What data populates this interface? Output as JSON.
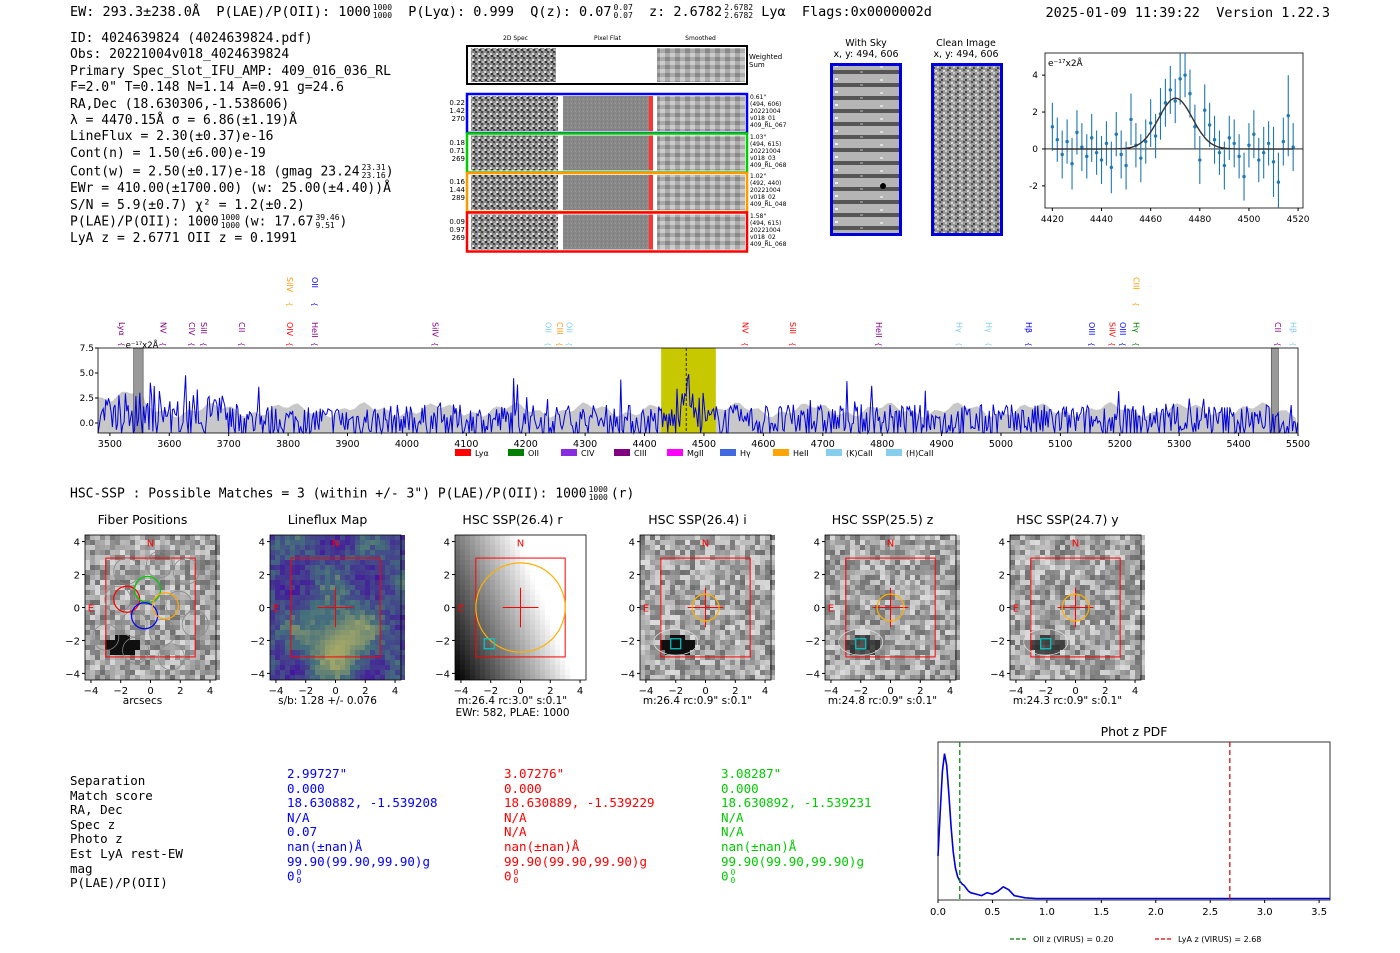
{
  "header": {
    "ew": "EW: 293.3±238.0Å",
    "plae": "P(LAE)/P(OII): 1000",
    "plae_hi": "1000",
    "plae_lo": "1000",
    "plya": "P(Lyα): 0.999",
    "qz": "Q(z): 0.07",
    "qz_hi": "0.07",
    "qz_lo": "0.07",
    "z": "z: 2.6782",
    "z_hi": "2.6782",
    "z_lo": "2.6782",
    "z_line": "Lyα",
    "flags": "Flags:0x0000002d",
    "timestamp": "2025-01-09 11:39:22",
    "version": "Version 1.22.3"
  },
  "info": {
    "lines": [
      "ID: 4024639824 (4024639824.pdf)",
      "Obs: 20221004v018_4024639824",
      "Primary Spec_Slot_IFU_AMP: 409_016_036_RL",
      "F=2.0\"  T=0.148  N=1.14  A=0.91  g=24.6",
      "RA,Dec (18.630306,-1.538606)",
      "λ = 4470.15Å  σ = 6.86(±1.19)Å",
      "LineFlux = 2.30(±0.37)e-16",
      "Cont(n) = 1.50(±6.00)e-19"
    ],
    "cont_w": "Cont(w) = 2.50(±0.17)e-18 (gmag 23.24",
    "cont_w_hi": "23.31",
    "cont_w_lo": "23.16",
    "ewr": "EWr = 410.00(±1700.00) (w: 25.00(±4.40))Å",
    "sn": "S/N = 5.9(±0.7)  χ² = 1.2(±0.2)",
    "plae": "P(LAE)/P(OII): 1000",
    "plae_hi": "1000",
    "plae_lo": "1000",
    "plae_w": "(w: 17.67",
    "plae_w_hi": "39.46",
    "plae_w_lo": "9.51",
    "z": "LyA z = 2.6771  OII z = 0.1991"
  },
  "cutouts": {
    "col_titles": [
      "2D Spec",
      "Pixel Flat",
      "Smoothed"
    ],
    "weighted_sum": "Weighted Sum",
    "rows": [
      {
        "left": [
          "0.22",
          "1.42",
          "270"
        ],
        "right": [
          "0.61\"",
          "(494, 606)",
          "20221004",
          "v018_01",
          "409_RL_067"
        ],
        "color": "#0000ff"
      },
      {
        "left": [
          "0.18",
          "0.71",
          "269"
        ],
        "right": [
          "1.03\"",
          "(494, 615)",
          "20221004",
          "v018_03",
          "409_RL_068"
        ],
        "color": "#00cc00"
      },
      {
        "left": [
          "0.16",
          "1.44",
          "289"
        ],
        "right": [
          "1.02\"",
          "(492, 440)",
          "20221004",
          "v018_02",
          "409_RL_048"
        ],
        "color": "#ff9900"
      },
      {
        "left": [
          "0.09",
          "0.97",
          "269"
        ],
        "right": [
          "1.58\"",
          "(494, 615)",
          "20221004",
          "v018_02",
          "409_RL_068"
        ],
        "color": "#ff0000"
      }
    ],
    "with_sky": "With Sky",
    "with_sky_xy": "x, y: 494, 606",
    "clean": "Clean Image",
    "clean_xy": "x, y: 494, 606"
  },
  "chart_data": [
    {
      "type": "line",
      "name": "emission-line-fit",
      "title": "",
      "ylabel": "e⁻¹⁷x2Å",
      "xlim": [
        4417,
        4522
      ],
      "ylim": [
        -3.2,
        5.2
      ],
      "xticks": [
        4420,
        4440,
        4460,
        4480,
        4500,
        4520
      ],
      "yticks": [
        -2,
        0,
        2,
        4
      ],
      "x": [
        4420,
        4422,
        4424,
        4426,
        4428,
        4430,
        4432,
        4434,
        4436,
        4438,
        4440,
        4442,
        4444,
        4446,
        4448,
        4450,
        4452,
        4454,
        4456,
        4458,
        4460,
        4462,
        4464,
        4466,
        4468,
        4470,
        4472,
        4474,
        4476,
        4478,
        4480,
        4482,
        4484,
        4486,
        4488,
        4490,
        4492,
        4494,
        4496,
        4498,
        4500,
        4502,
        4504,
        4506,
        4508,
        4510,
        4512,
        4514,
        4516,
        4518
      ],
      "y": [
        1.2,
        0.5,
        -0.3,
        0.4,
        -0.8,
        0.9,
        0.1,
        -0.4,
        0.6,
        -0.2,
        -0.6,
        0.3,
        -1.0,
        0.8,
        -0.3,
        -0.9,
        1.6,
        0.2,
        -0.5,
        0.4,
        1.4,
        0.7,
        1.9,
        2.5,
        3.2,
        2.6,
        3.8,
        4.0,
        3.0,
        1.2,
        -0.6,
        2.1,
        1.3,
        0.5,
        -0.2,
        -0.9,
        0.6,
        0.3,
        -0.4,
        -1.5,
        0.2,
        0.8,
        -0.6,
        -0.2,
        0.3,
        -0.7,
        -1.8,
        0.4,
        1.8,
        0.1
      ],
      "err": [
        1.3,
        1.2,
        1.3,
        1.2,
        1.4,
        1.2,
        1.3,
        1.2,
        1.3,
        1.2,
        1.3,
        1.2,
        1.4,
        1.2,
        1.3,
        1.3,
        1.4,
        1.2,
        1.3,
        1.2,
        1.3,
        1.2,
        1.4,
        1.3,
        1.3,
        1.2,
        1.4,
        1.2,
        1.3,
        1.2,
        1.3,
        1.4,
        1.2,
        1.3,
        1.2,
        1.3,
        1.2,
        1.3,
        1.2,
        1.3,
        1.2,
        1.3,
        1.2,
        1.4,
        1.2,
        1.9,
        1.6,
        1.3,
        2.2,
        1.3
      ],
      "model": {
        "amplitude": 2.75,
        "center": 4470.15,
        "sigma": 6.86
      }
    },
    {
      "type": "line",
      "name": "full-spectrum",
      "xlim": [
        3480,
        5500
      ],
      "ylim": [
        -1.0,
        7.5
      ],
      "xticks": [
        3500,
        3600,
        3700,
        3800,
        3900,
        4000,
        4100,
        4200,
        4300,
        4400,
        4500,
        4600,
        4700,
        4800,
        4900,
        5000,
        5100,
        5200,
        5300,
        5400,
        5500
      ],
      "yticks": [
        0.0,
        2.5,
        5.0,
        7.5
      ],
      "ylabel_inset": "e⁻¹⁷x2Å",
      "highlight_range": [
        4428,
        4520
      ],
      "line_marker": 4470.15,
      "hatched": [
        [
          3540,
          3556
        ],
        [
          5455,
          5467
        ]
      ],
      "line_labels": [
        {
          "name": "Lyα",
          "x": 3510,
          "color": "#800080",
          "row": 1
        },
        {
          "name": "NV",
          "x": 3580,
          "color": "#800080",
          "row": 1
        },
        {
          "name": "CIV",
          "x": 3628,
          "color": "#800080",
          "row": 1
        },
        {
          "name": "SiII",
          "x": 3648,
          "color": "#800080",
          "row": 1
        },
        {
          "name": "CII",
          "x": 3712,
          "color": "#800080",
          "row": 1
        },
        {
          "name": "SiIV",
          "x": 3793,
          "color": "#ff9900",
          "row": 0
        },
        {
          "name": "OIV",
          "x": 3793,
          "color": "#ff0000",
          "row": 1
        },
        {
          "name": "OII",
          "x": 3835,
          "color": "#0000ff",
          "row": 0
        },
        {
          "name": "HeII",
          "x": 3835,
          "color": "#800080",
          "row": 1
        },
        {
          "name": "SiIV",
          "x": 4038,
          "color": "#800080",
          "row": 1
        },
        {
          "name": "OII",
          "x": 4228,
          "color": "#87ceeb",
          "row": 1
        },
        {
          "name": "CIII",
          "x": 4248,
          "color": "#ff9900",
          "row": 1
        },
        {
          "name": "OII",
          "x": 4264,
          "color": "#87ceeb",
          "row": 1
        },
        {
          "name": "NV",
          "x": 4560,
          "color": "#ff0000",
          "row": 1
        },
        {
          "name": "SiII",
          "x": 4640,
          "color": "#ff0000",
          "row": 1
        },
        {
          "name": "HeII",
          "x": 4785,
          "color": "#800080",
          "row": 1
        },
        {
          "name": "Hγ",
          "x": 4920,
          "color": "#87ceeb",
          "row": 1
        },
        {
          "name": "Hγ",
          "x": 4970,
          "color": "#87ceeb",
          "row": 1
        },
        {
          "name": "Hβ",
          "x": 5037,
          "color": "#0000ff",
          "row": 1
        },
        {
          "name": "OIII",
          "x": 5143,
          "color": "#0000ff",
          "row": 1
        },
        {
          "name": "SiIV",
          "x": 5178,
          "color": "#ff0000",
          "row": 1
        },
        {
          "name": "OIII",
          "x": 5195,
          "color": "#0000ff",
          "row": 1
        },
        {
          "name": "CIII",
          "x": 5218,
          "color": "#ff9900",
          "row": 0
        },
        {
          "name": "Hγ",
          "x": 5218,
          "color": "#008000",
          "row": 1
        },
        {
          "name": "CII",
          "x": 5456,
          "color": "#800080",
          "row": 1
        },
        {
          "name": "Hβ",
          "x": 5482,
          "color": "#87ceeb",
          "row": 1
        }
      ],
      "legend": [
        {
          "label": "Lyα",
          "color": "#ff0000"
        },
        {
          "label": "OII",
          "color": "#008000"
        },
        {
          "label": "CIV",
          "color": "#8a2be2"
        },
        {
          "label": "CIII",
          "color": "#800080"
        },
        {
          "label": "MgII",
          "color": "#ff00ff"
        },
        {
          "label": "Hγ",
          "color": "#4169e1"
        },
        {
          "label": "HeII",
          "color": "#ffa500"
        },
        {
          "label": "(K)CaII",
          "color": "#87ceeb"
        },
        {
          "label": "(H)CaII",
          "color": "#87ceeb"
        }
      ]
    },
    {
      "type": "line",
      "name": "phot-z-pdf",
      "title": "Phot z PDF",
      "xlim": [
        0,
        3.6
      ],
      "ylim": [
        0,
        1.08
      ],
      "xticks": [
        0.0,
        0.5,
        1.0,
        1.5,
        2.0,
        2.5,
        3.0,
        3.5
      ],
      "x": [
        0.0,
        0.02,
        0.04,
        0.06,
        0.08,
        0.1,
        0.12,
        0.14,
        0.16,
        0.18,
        0.2,
        0.22,
        0.24,
        0.26,
        0.28,
        0.3,
        0.35,
        0.4,
        0.45,
        0.5,
        0.55,
        0.6,
        0.65,
        0.7,
        0.8,
        0.9,
        1.0,
        1.5,
        2.0,
        2.5,
        3.0,
        3.6
      ],
      "y": [
        0.3,
        0.6,
        0.88,
        1.0,
        0.92,
        0.72,
        0.5,
        0.33,
        0.22,
        0.16,
        0.13,
        0.11,
        0.1,
        0.08,
        0.06,
        0.05,
        0.04,
        0.03,
        0.05,
        0.04,
        0.06,
        0.09,
        0.07,
        0.03,
        0.015,
        0.01,
        0.01,
        0.01,
        0.01,
        0.01,
        0.01,
        0.01
      ],
      "oii_z": 0.2,
      "lya_z": 2.68,
      "legend": [
        "OII z (VIRUS) = 0.20",
        "LyA z (VIRUS) = 2.68"
      ]
    }
  ],
  "hsc": {
    "title": "HSC-SSP : Possible Matches = 3 (within +/- 3\")  P(LAE)/P(OII): 1000",
    "title_hi": "1000",
    "title_lo": "1000",
    "title_band": "(r)",
    "panels": [
      {
        "title": "Fiber Positions",
        "caption": [
          "arcsecs"
        ]
      },
      {
        "title": "Lineflux Map",
        "caption": [
          "s/b: 1.28 +/- 0.076"
        ]
      },
      {
        "title": "HSC SSP(26.4) r",
        "caption": [
          "m:26.4 rc:3.0\"  s:0.1\"",
          "EWr: 582, PLAE: 1000"
        ]
      },
      {
        "title": "HSC SSP(26.4) i",
        "caption": [
          "m:26.4 rc:0.9\"  s:0.1\""
        ]
      },
      {
        "title": "HSC SSP(25.5) z",
        "caption": [
          "m:24.8 rc:0.9\"  s:0.1\""
        ]
      },
      {
        "title": "HSC SSP(24.7) y",
        "caption": [
          "m:24.3 rc:0.9\"  s:0.1\""
        ]
      }
    ],
    "axis_ticks": [
      "-4",
      "-2",
      "0",
      "2",
      "4"
    ],
    "north": "N",
    "east": "E"
  },
  "matches": {
    "labels": [
      "Separation",
      "Match score",
      "RA, Dec",
      "Spec z",
      "Photo z",
      "Est LyA rest-EW",
      "mag",
      "P(LAE)/P(OII)"
    ],
    "columns": [
      {
        "color": "#0000ff",
        "values": [
          "2.99727\"",
          "0.000",
          "18.630882, -1.539208",
          "N/A",
          "0.07",
          "nan(±nan)Å",
          "99.90(99.90,99.90)g",
          "0"
        ],
        "plae_sub": "0",
        "plae_sub2": "0"
      },
      {
        "color": "#ff0000",
        "values": [
          "3.07276\"",
          "0.000",
          "18.630889, -1.539229",
          "N/A",
          "N/A",
          "nan(±nan)Å",
          "99.90(99.90,99.90)g",
          "0"
        ],
        "plae_sub": "0",
        "plae_sub2": "0"
      },
      {
        "color": "#00cc00",
        "values": [
          "3.08287\"",
          "0.000",
          "18.630892, -1.539231",
          "N/A",
          "N/A",
          "nan(±nan)Å",
          "99.90(99.90,99.90)g",
          "0"
        ],
        "plae_sub": "0",
        "plae_sub2": "0"
      }
    ]
  }
}
